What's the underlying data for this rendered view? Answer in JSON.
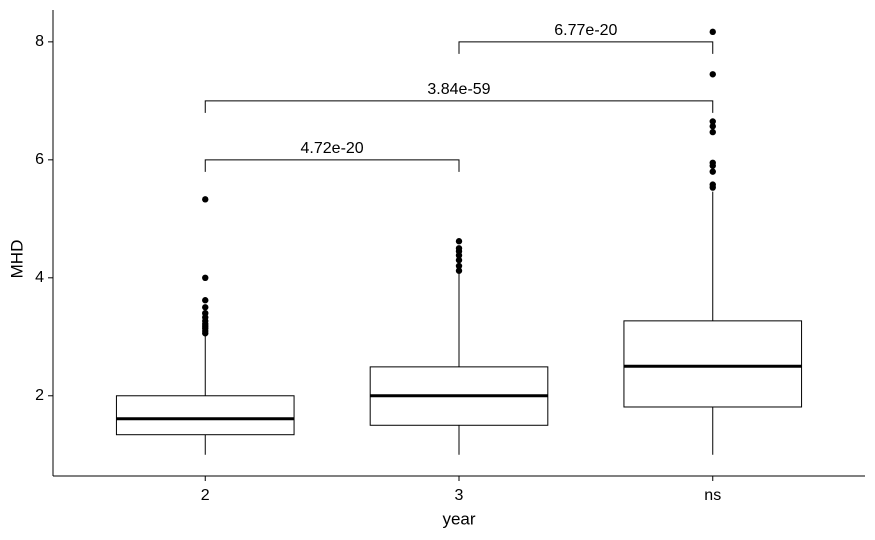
{
  "chart_data": {
    "type": "box",
    "x_label": "year",
    "y_label": "MHD",
    "categories": [
      "2",
      "3",
      "ns"
    ],
    "boxes": [
      {
        "min": 1.0,
        "q1": 1.34,
        "median": 1.61,
        "q3": 2.0,
        "max": 3.02,
        "outliers": [
          3.06,
          3.1,
          3.14,
          3.18,
          3.22,
          3.27,
          3.33,
          3.4,
          3.5,
          3.62,
          4.0,
          5.33
        ]
      },
      {
        "min": 1.0,
        "q1": 1.5,
        "median": 2.0,
        "q3": 2.49,
        "max": 4.08,
        "outliers": [
          4.12,
          4.2,
          4.3,
          4.38,
          4.45,
          4.5,
          4.62
        ]
      },
      {
        "min": 1.0,
        "q1": 1.81,
        "median": 2.5,
        "q3": 3.27,
        "max": 5.46,
        "outliers": [
          5.53,
          5.58,
          5.8,
          5.9,
          5.95,
          6.47,
          6.57,
          6.65,
          7.45,
          8.17
        ]
      }
    ],
    "comparisons": [
      {
        "groups": [
          "2",
          "3"
        ],
        "y": 6.0,
        "label": "4.72e-20"
      },
      {
        "groups": [
          "2",
          "ns"
        ],
        "y": 7.0,
        "label": "3.84e-59"
      },
      {
        "groups": [
          "3",
          "ns"
        ],
        "y": 8.0,
        "label": "6.77e-20"
      }
    ],
    "ylim": [
      0.64,
      8.54
    ],
    "yticks": [
      2,
      4,
      6,
      8
    ]
  }
}
